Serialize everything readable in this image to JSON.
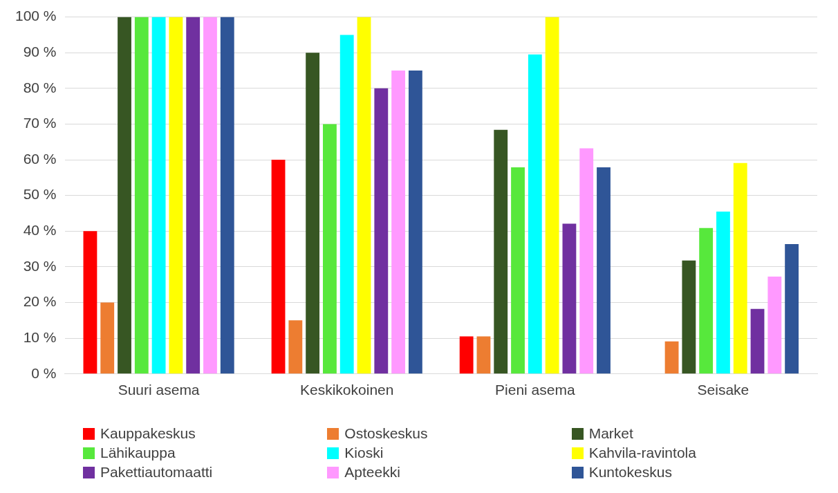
{
  "chart_data": {
    "type": "bar",
    "categories": [
      "Suuri asema",
      "Keskikokoinen",
      "Pieni asema",
      "Seisake"
    ],
    "series": [
      {
        "name": "Kauppakeskus",
        "color": "#ff0000",
        "values": [
          40,
          60,
          10.5,
          0
        ]
      },
      {
        "name": "Ostoskeskus",
        "color": "#ed7d31",
        "values": [
          20,
          15,
          10.5,
          9.1
        ]
      },
      {
        "name": "Market",
        "color": "#375623",
        "values": [
          100,
          90,
          68.4,
          31.8
        ]
      },
      {
        "name": "Lähikauppa",
        "color": "#57e83c",
        "values": [
          100,
          70,
          57.9,
          40.9
        ]
      },
      {
        "name": "Kioski",
        "color": "#00ffff",
        "values": [
          100,
          95,
          89.5,
          45.5
        ]
      },
      {
        "name": "Kahvila-ravintola",
        "color": "#ffff00",
        "values": [
          100,
          100,
          100,
          59.1
        ]
      },
      {
        "name": "Pakettiautomaatti",
        "color": "#7030a0",
        "values": [
          100,
          80,
          42.1,
          18.2
        ]
      },
      {
        "name": "Apteekki",
        "color": "#ff99ff",
        "values": [
          100,
          85,
          63.2,
          27.3
        ]
      },
      {
        "name": "Kuntokeskus",
        "color": "#2f5597",
        "values": [
          100,
          85,
          57.9,
          36.4
        ]
      }
    ],
    "ylim": [
      0,
      100
    ],
    "yticks": [
      {
        "value": 0,
        "label": "0 %"
      },
      {
        "value": 10,
        "label": "10 %"
      },
      {
        "value": 20,
        "label": "20 %"
      },
      {
        "value": 30,
        "label": "30 %"
      },
      {
        "value": 40,
        "label": "40 %"
      },
      {
        "value": 50,
        "label": "50 %"
      },
      {
        "value": 60,
        "label": "60 %"
      },
      {
        "value": 70,
        "label": "70 %"
      },
      {
        "value": 80,
        "label": "80 %"
      },
      {
        "value": 90,
        "label": "90 %"
      },
      {
        "value": 100,
        "label": "100 %"
      }
    ],
    "grid": "y",
    "legend": "bottom"
  }
}
